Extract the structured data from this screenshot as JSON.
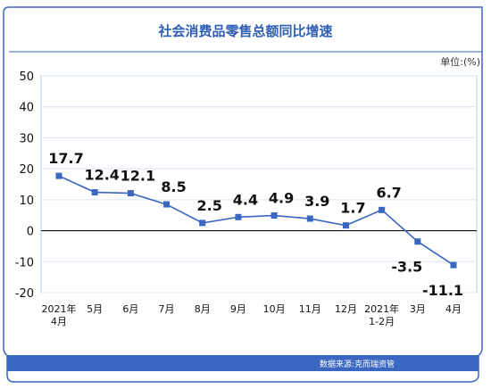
{
  "colors": {
    "accent": "#2f5fb4",
    "series": "#3a67bf",
    "grid": "#d6e4f5",
    "border": "#3a67bf",
    "footer_bar": "#3a67bf"
  },
  "footer": {
    "source": "数据来源:克而瑞资管"
  },
  "chart_data": {
    "type": "line",
    "title": "社会消费品零售总额同比增速",
    "unit": "单位:(%)",
    "categories": [
      "2021年\n4月",
      "5月",
      "6月",
      "7月",
      "8月",
      "9月",
      "10月",
      "11月",
      "12月",
      "2021年\n1-2月",
      "3月",
      "4月"
    ],
    "series": [
      {
        "values": [
          17.7,
          12.4,
          12.1,
          8.5,
          2.5,
          4.4,
          4.9,
          3.9,
          1.7,
          6.7,
          -3.5,
          -11.1
        ]
      }
    ],
    "data_labels": [
      "17.7",
      "12.4",
      "12.1",
      "8.5",
      "2.5",
      "4.4",
      "4.9",
      "3.9",
      "1.7",
      "6.7",
      "-3.5",
      "-11.1"
    ],
    "ylim": [
      -20,
      50
    ],
    "yticks": [
      50,
      40,
      30,
      20,
      10,
      0,
      -10,
      -20
    ],
    "grid": true,
    "legend": "none"
  }
}
